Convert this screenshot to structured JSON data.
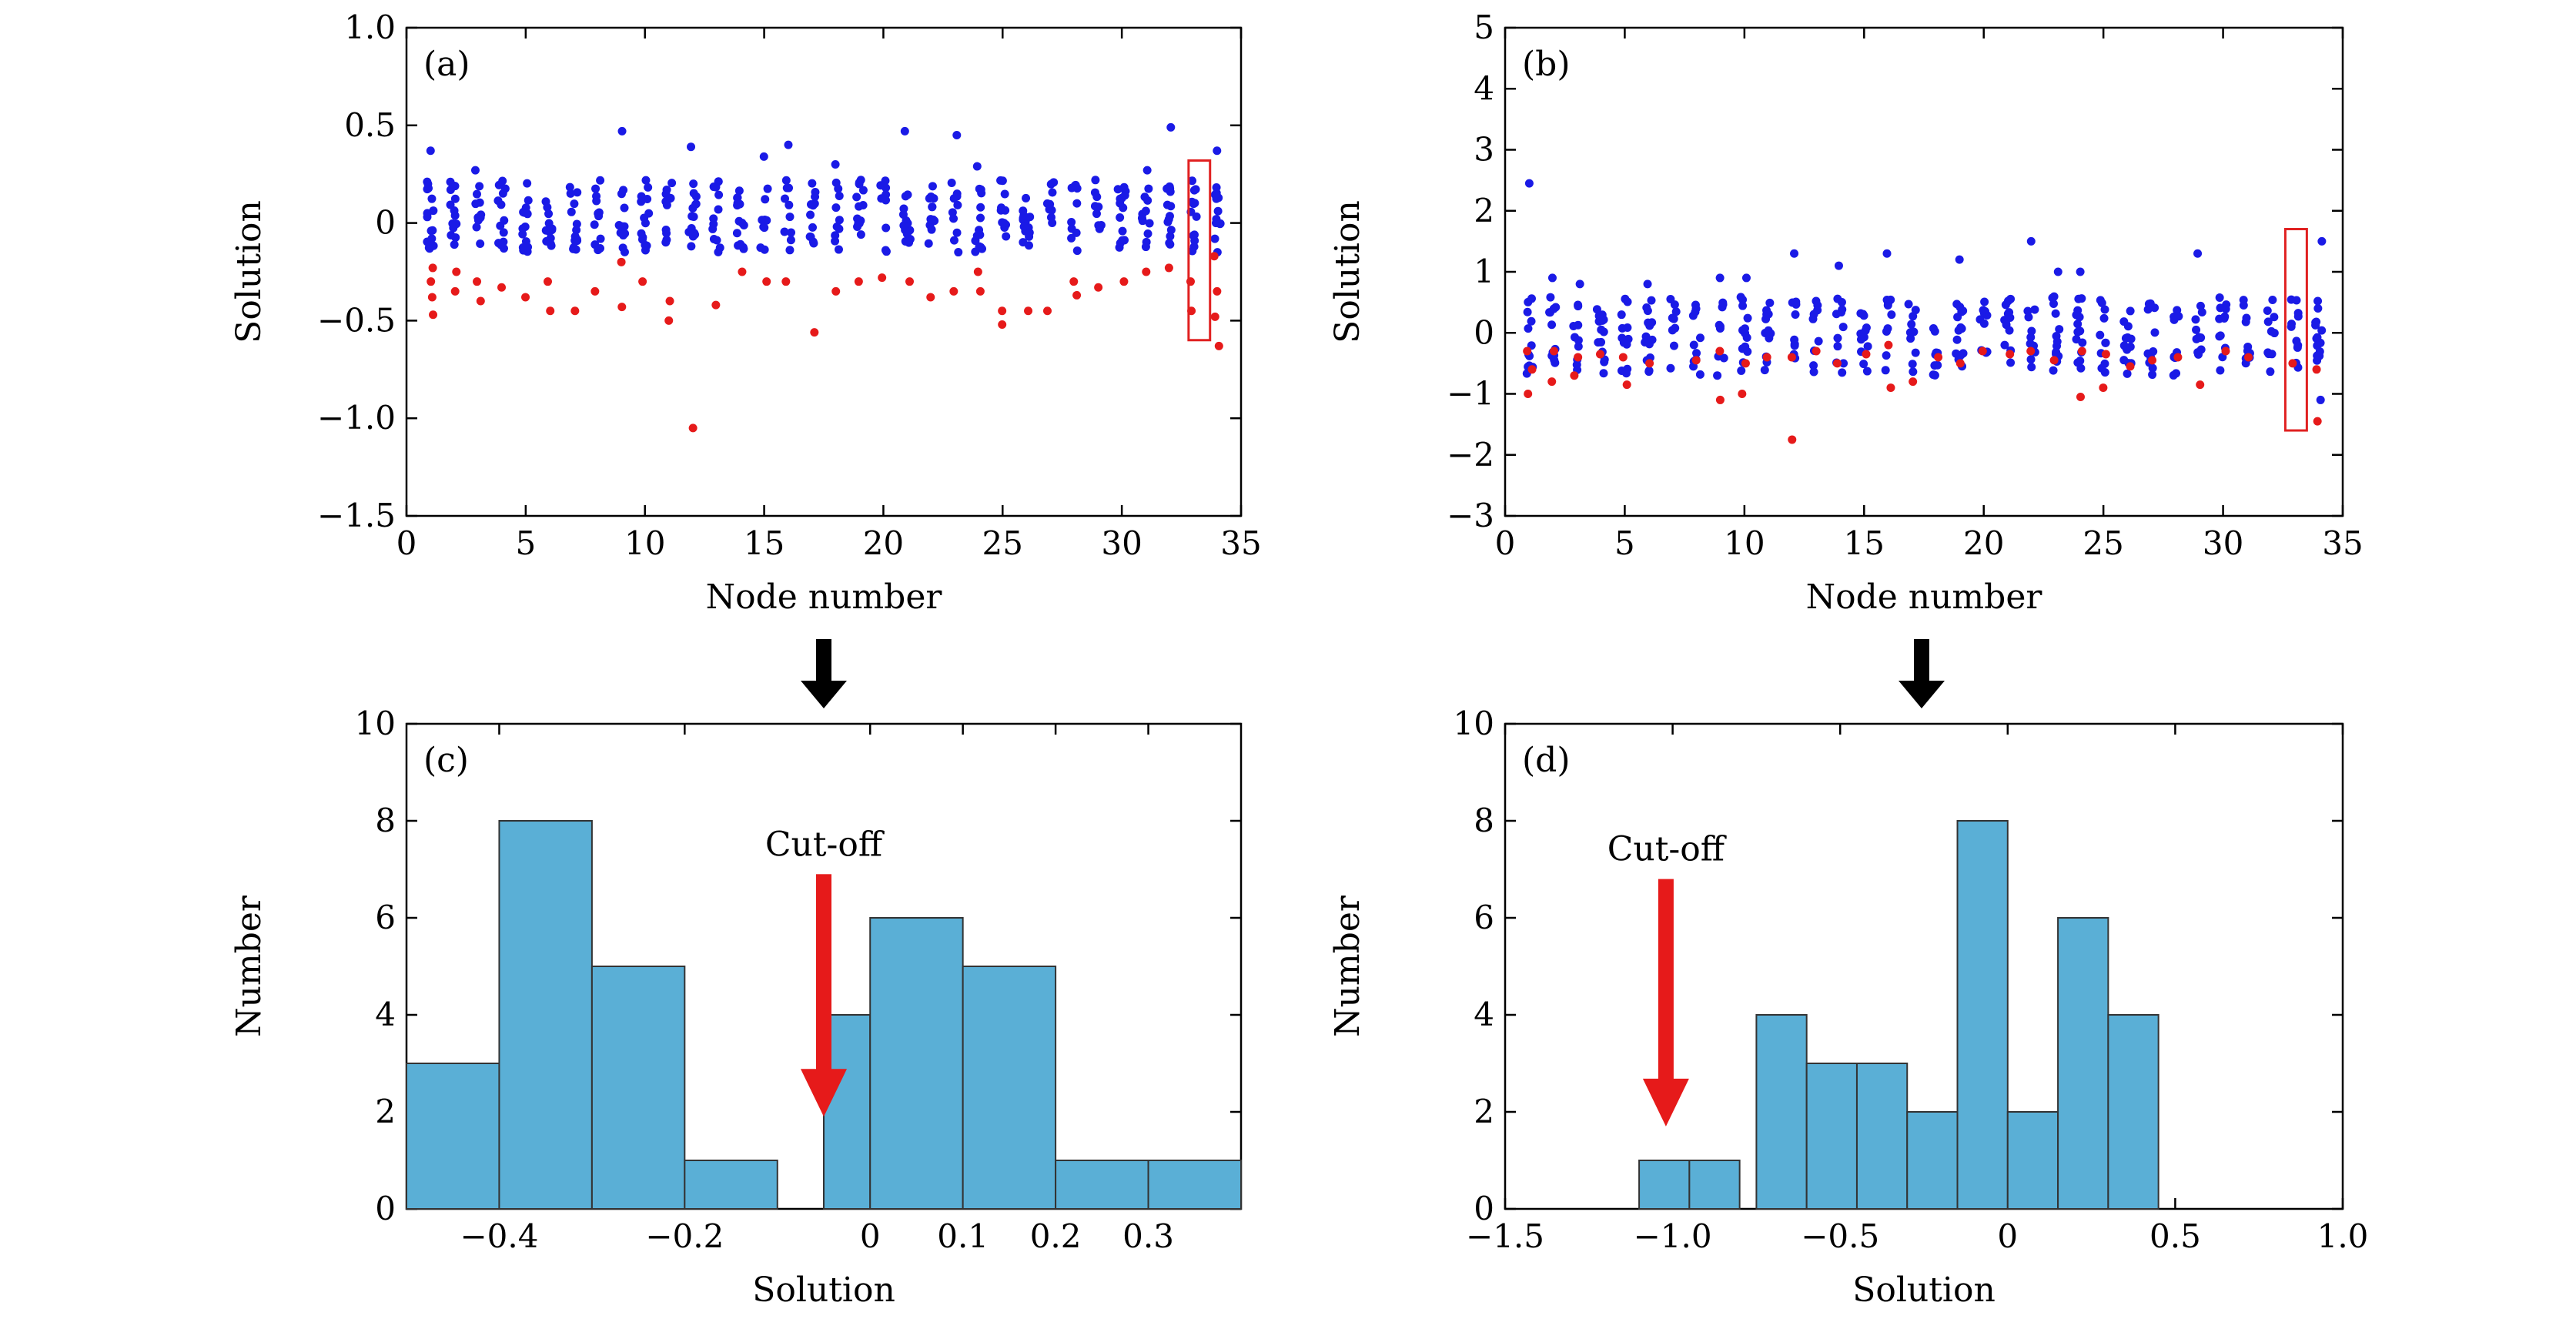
{
  "panels": [
    {
      "id": "a",
      "panel_label": "(a)",
      "type": "scatter",
      "xlabel": "Node number",
      "ylabel": "Solution",
      "xlim": [
        0,
        35
      ],
      "ylim": [
        -1.5,
        1.0
      ],
      "xticks": [
        0,
        5,
        10,
        15,
        20,
        25,
        30,
        35
      ],
      "xtick_labels": [
        "0",
        "5",
        "10",
        "15",
        "20",
        "25",
        "30",
        "35"
      ],
      "yticks": [
        -1.5,
        -1.0,
        -0.5,
        0,
        0.5,
        1.0
      ],
      "ytick_labels": [
        "−1.5",
        "−1.0",
        "−0.5",
        "0",
        "0.5",
        "1.0"
      ],
      "highlight_box": {
        "x": [
          32.8,
          33.7
        ],
        "y": [
          -0.6,
          0.32
        ],
        "color": "#e02020"
      },
      "series": [
        {
          "color": "#1a1ae6",
          "points": [
            [
              1,
              0.37
            ],
            [
              1,
              0.2
            ],
            [
              1,
              0.05
            ],
            [
              1,
              -0.08
            ],
            [
              3,
              0.27
            ],
            [
              9,
              0.47
            ],
            [
              12,
              0.39
            ],
            [
              15,
              0.34
            ],
            [
              16,
              0.4
            ],
            [
              18,
              0.3
            ],
            [
              19,
              0.22
            ],
            [
              21,
              0.47
            ],
            [
              23,
              0.45
            ],
            [
              24,
              0.29
            ],
            [
              31,
              0.27
            ],
            [
              32,
              0.49
            ],
            [
              34,
              0.37
            ]
          ],
          "band": {
            "from": 1,
            "to": 34,
            "lo": -0.15,
            "hi": 0.22
          }
        },
        {
          "color": "#e61a1a",
          "points": [
            [
              1,
              -0.23
            ],
            [
              1,
              -0.3
            ],
            [
              1,
              -0.38
            ],
            [
              1,
              -0.47
            ],
            [
              2,
              -0.25
            ],
            [
              2,
              -0.35
            ],
            [
              3,
              -0.3
            ],
            [
              3,
              -0.4
            ],
            [
              4,
              -0.33
            ],
            [
              5,
              -0.38
            ],
            [
              6,
              -0.3
            ],
            [
              6,
              -0.45
            ],
            [
              7,
              -0.45
            ],
            [
              8,
              -0.35
            ],
            [
              9,
              -0.2
            ],
            [
              9,
              -0.43
            ],
            [
              10,
              -0.3
            ],
            [
              11,
              -0.4
            ],
            [
              11,
              -0.5
            ],
            [
              12,
              -1.05
            ],
            [
              13,
              -0.42
            ],
            [
              14,
              -0.25
            ],
            [
              15,
              -0.3
            ],
            [
              16,
              -0.3
            ],
            [
              17,
              -0.56
            ],
            [
              18,
              -0.35
            ],
            [
              19,
              -0.3
            ],
            [
              20,
              -0.28
            ],
            [
              21,
              -0.3
            ],
            [
              22,
              -0.38
            ],
            [
              23,
              -0.35
            ],
            [
              24,
              -0.25
            ],
            [
              24,
              -0.35
            ],
            [
              25,
              -0.45
            ],
            [
              25,
              -0.52
            ],
            [
              26,
              -0.45
            ],
            [
              27,
              -0.45
            ],
            [
              28,
              -0.3
            ],
            [
              28,
              -0.37
            ],
            [
              29,
              -0.33
            ],
            [
              30,
              -0.3
            ],
            [
              31,
              -0.25
            ],
            [
              32,
              -0.23
            ],
            [
              33,
              -0.3
            ],
            [
              33,
              -0.45
            ],
            [
              34,
              -0.17
            ],
            [
              34,
              -0.35
            ],
            [
              34,
              -0.48
            ],
            [
              34,
              -0.63
            ]
          ]
        }
      ]
    },
    {
      "id": "b",
      "panel_label": "(b)",
      "type": "scatter",
      "xlabel": "Node number",
      "ylabel": "Solution",
      "xlim": [
        0,
        35
      ],
      "ylim": [
        -3,
        5
      ],
      "xticks": [
        0,
        5,
        10,
        15,
        20,
        25,
        30,
        35
      ],
      "xtick_labels": [
        "0",
        "5",
        "10",
        "15",
        "20",
        "25",
        "30",
        "35"
      ],
      "yticks": [
        -3,
        -2,
        -1,
        0,
        1,
        2,
        3,
        4,
        5
      ],
      "ytick_labels": [
        "−3",
        "−2",
        "−1",
        "0",
        "1",
        "2",
        "3",
        "4",
        "5"
      ],
      "highlight_box": {
        "x": [
          32.6,
          33.5
        ],
        "y": [
          -1.6,
          1.7
        ],
        "color": "#e02020"
      },
      "series": [
        {
          "color": "#1a1ae6",
          "points": [
            [
              1,
              2.45
            ],
            [
              2,
              0.9
            ],
            [
              3,
              0.8
            ],
            [
              6,
              0.8
            ],
            [
              9,
              0.9
            ],
            [
              10,
              0.9
            ],
            [
              12,
              1.3
            ],
            [
              14,
              1.1
            ],
            [
              16,
              1.3
            ],
            [
              19,
              1.2
            ],
            [
              22,
              1.5
            ],
            [
              23,
              1.0
            ],
            [
              24,
              1.0
            ],
            [
              29,
              1.3
            ],
            [
              34,
              1.5
            ],
            [
              34,
              -1.1
            ]
          ],
          "band": {
            "from": 1,
            "to": 34,
            "lo": -0.7,
            "hi": 0.6
          }
        },
        {
          "color": "#e61a1a",
          "points": [
            [
              1,
              -0.3
            ],
            [
              1,
              -0.6
            ],
            [
              1,
              -1.0
            ],
            [
              2,
              -0.3
            ],
            [
              2,
              -0.8
            ],
            [
              3,
              -0.4
            ],
            [
              3,
              -0.7
            ],
            [
              4,
              -0.35
            ],
            [
              5,
              -0.4
            ],
            [
              5,
              -0.85
            ],
            [
              6,
              -0.5
            ],
            [
              8,
              -0.45
            ],
            [
              9,
              -0.3
            ],
            [
              9,
              -1.1
            ],
            [
              10,
              -0.5
            ],
            [
              10,
              -1.0
            ],
            [
              11,
              -0.4
            ],
            [
              12,
              -0.4
            ],
            [
              12,
              -1.75
            ],
            [
              13,
              -0.3
            ],
            [
              14,
              -0.5
            ],
            [
              15,
              -0.35
            ],
            [
              16,
              -0.2
            ],
            [
              16,
              -0.9
            ],
            [
              17,
              -0.8
            ],
            [
              18,
              -0.4
            ],
            [
              19,
              -0.5
            ],
            [
              20,
              -0.3
            ],
            [
              21,
              -0.35
            ],
            [
              22,
              -0.3
            ],
            [
              23,
              -0.45
            ],
            [
              24,
              -0.3
            ],
            [
              24,
              -1.05
            ],
            [
              25,
              -0.35
            ],
            [
              25,
              -0.9
            ],
            [
              26,
              -0.55
            ],
            [
              27,
              -0.45
            ],
            [
              28,
              -0.4
            ],
            [
              29,
              -0.85
            ],
            [
              30,
              -0.3
            ],
            [
              31,
              -0.4
            ],
            [
              33,
              -0.5
            ],
            [
              34,
              -0.6
            ],
            [
              34,
              -1.45
            ]
          ]
        }
      ]
    },
    {
      "id": "c",
      "panel_label": "(c)",
      "type": "bar",
      "xlabel": "Solution",
      "ylabel": "Number",
      "xlim": [
        -0.5,
        0.4
      ],
      "ylim": [
        0,
        10
      ],
      "xticks": [
        -0.4,
        -0.2,
        0,
        0.1,
        0.2,
        0.3
      ],
      "xtick_labels": [
        "−0.4",
        "−0.2",
        "0",
        "0.1",
        "0.2",
        "0.3"
      ],
      "yticks": [
        0,
        2,
        4,
        6,
        8,
        10
      ],
      "ytick_labels": [
        "0",
        "2",
        "4",
        "6",
        "8",
        "10"
      ],
      "bar_color": "#5aafd6",
      "bins": [
        {
          "from": -0.5,
          "to": -0.4,
          "count": 3
        },
        {
          "from": -0.4,
          "to": -0.3,
          "count": 8
        },
        {
          "from": -0.3,
          "to": -0.2,
          "count": 5
        },
        {
          "from": -0.2,
          "to": -0.1,
          "count": 1
        },
        {
          "from": -0.05,
          "to": 0.0,
          "count": 4
        },
        {
          "from": 0.0,
          "to": 0.1,
          "count": 6
        },
        {
          "from": 0.1,
          "to": 0.2,
          "count": 5
        },
        {
          "from": 0.2,
          "to": 0.3,
          "count": 1
        },
        {
          "from": 0.3,
          "to": 0.4,
          "count": 1
        }
      ],
      "annotation": {
        "text": "Cut-off",
        "x": -0.05,
        "arrow_from": 6.9,
        "arrow_to": 1.9,
        "color": "#e61a1a"
      }
    },
    {
      "id": "d",
      "panel_label": "(d)",
      "type": "bar",
      "xlabel": "Solution",
      "ylabel": "Number",
      "xlim": [
        -1.5,
        1.0
      ],
      "ylim": [
        0,
        10
      ],
      "xticks": [
        -1.5,
        -1.0,
        -0.5,
        0,
        0.5,
        1.0
      ],
      "xtick_labels": [
        "−1.5",
        "−1.0",
        "−0.5",
        "0",
        "0.5",
        "1.0"
      ],
      "yticks": [
        0,
        2,
        4,
        6,
        8,
        10
      ],
      "ytick_labels": [
        "0",
        "2",
        "4",
        "6",
        "8",
        "10"
      ],
      "bar_color": "#5aafd6",
      "bins": [
        {
          "from": -1.1,
          "to": -0.95,
          "count": 1
        },
        {
          "from": -0.95,
          "to": -0.8,
          "count": 1
        },
        {
          "from": -0.75,
          "to": -0.6,
          "count": 4
        },
        {
          "from": -0.6,
          "to": -0.45,
          "count": 3
        },
        {
          "from": -0.45,
          "to": -0.3,
          "count": 3
        },
        {
          "from": -0.3,
          "to": -0.15,
          "count": 2
        },
        {
          "from": -0.15,
          "to": 0.0,
          "count": 8
        },
        {
          "from": 0.0,
          "to": 0.15,
          "count": 2
        },
        {
          "from": 0.15,
          "to": 0.3,
          "count": 6
        },
        {
          "from": 0.3,
          "to": 0.45,
          "count": 4
        }
      ],
      "annotation": {
        "text": "Cut-off",
        "x": -1.02,
        "arrow_from": 6.8,
        "arrow_to": 1.7,
        "color": "#e61a1a"
      }
    }
  ],
  "flow_arrows": {
    "color": "#000000"
  }
}
